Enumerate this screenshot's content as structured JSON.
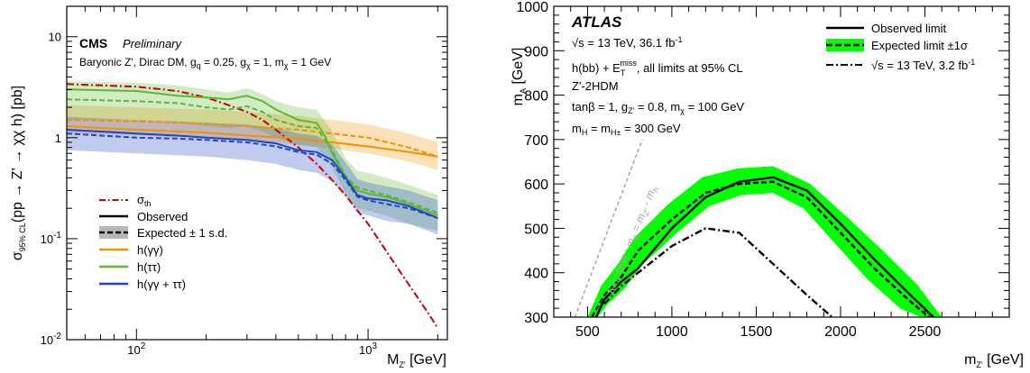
{
  "chart_data": [
    {
      "type": "line",
      "experiment": "CMS",
      "status": "Preliminary",
      "model_text": "Baryonic Z', Dirac DM, g_q = 0.25, g_χ = 1, m_χ = 1 GeV",
      "xlabel": "M_Z' [GeV]",
      "ylabel": "σ_95% CL(pp → Z' → χχ h) [pb]",
      "xscale": "log",
      "yscale": "log",
      "xlim": [
        50,
        2200
      ],
      "ylim": [
        0.01,
        20
      ],
      "x_ticks": [
        {
          "value": 100,
          "label": "10^2"
        },
        {
          "value": 1000,
          "label": "10^3"
        }
      ],
      "y_ticks": [
        {
          "value": 0.01,
          "label": "10^-2"
        },
        {
          "value": 0.1,
          "label": "10^-1"
        },
        {
          "value": 1,
          "label": "1"
        },
        {
          "value": 10,
          "label": "10"
        }
      ],
      "legend_position": "bottom-left",
      "legend": [
        {
          "label": "σ_th",
          "style": "dash-dot",
          "color": "#cc0000"
        },
        {
          "label": "Observed",
          "style": "solid",
          "color": "#000000"
        },
        {
          "label": "Expected ± 1 s.d.",
          "style": "dashed-band",
          "color": "#000000"
        },
        {
          "label": "h(γγ)",
          "style": "solid",
          "color": "#f39200"
        },
        {
          "label": "h(ττ)",
          "style": "solid",
          "color": "#5cb82e"
        },
        {
          "label": "h(γγ + ττ)",
          "style": "solid",
          "color": "#1f45c8"
        }
      ],
      "series": [
        {
          "name": "σ_th",
          "color": "#cc0000",
          "style": "dash-dot",
          "x": [
            50,
            100,
            150,
            200,
            250,
            300,
            350,
            400,
            500,
            600,
            700,
            800,
            900,
            1000,
            1200,
            1500,
            1800,
            2000
          ],
          "y": [
            3.4,
            3.2,
            2.9,
            2.5,
            2.1,
            1.8,
            1.5,
            1.2,
            0.8,
            0.55,
            0.38,
            0.27,
            0.19,
            0.14,
            0.075,
            0.035,
            0.019,
            0.013
          ]
        },
        {
          "name": "h(γγ) observed",
          "color": "#f39200",
          "style": "solid",
          "x": [
            50,
            100,
            200,
            300,
            500,
            700,
            1000,
            1500,
            2000
          ],
          "y": [
            1.3,
            1.2,
            1.12,
            1.05,
            0.98,
            0.9,
            0.82,
            0.72,
            0.65
          ]
        },
        {
          "name": "h(γγ) expected",
          "color": "#f39200",
          "style": "dashed",
          "x": [
            50,
            100,
            200,
            300,
            500,
            700,
            1000,
            1500,
            2000
          ],
          "y": [
            1.5,
            1.45,
            1.38,
            1.3,
            1.2,
            1.1,
            1.0,
            0.8,
            0.65
          ],
          "band_lo": [
            1.1,
            1.05,
            1.0,
            0.95,
            0.85,
            0.78,
            0.7,
            0.58,
            0.48
          ],
          "band_hi": [
            2.1,
            2.0,
            1.9,
            1.8,
            1.65,
            1.5,
            1.35,
            1.1,
            0.9
          ]
        },
        {
          "name": "h(ττ) observed",
          "color": "#5cb82e",
          "style": "solid",
          "x": [
            50,
            100,
            150,
            200,
            250,
            300,
            350,
            400,
            500,
            600,
            650,
            700,
            800,
            900,
            1000,
            1200,
            1500,
            2000
          ],
          "y": [
            3.0,
            2.9,
            2.6,
            2.5,
            2.4,
            2.6,
            2.3,
            1.9,
            1.5,
            1.4,
            1.05,
            0.7,
            0.4,
            0.3,
            0.28,
            0.26,
            0.22,
            0.17
          ]
        },
        {
          "name": "h(ττ) expected",
          "color": "#5cb82e",
          "style": "dashed",
          "x": [
            50,
            100,
            150,
            200,
            250,
            300,
            350,
            400,
            500,
            600,
            700,
            800,
            900,
            1000,
            1200,
            1500,
            2000
          ],
          "y": [
            2.4,
            2.3,
            2.2,
            2.0,
            1.9,
            2.05,
            1.8,
            1.5,
            1.3,
            1.25,
            0.75,
            0.42,
            0.32,
            0.3,
            0.27,
            0.23,
            0.18
          ],
          "band_lo": [
            1.5,
            1.5,
            1.4,
            1.3,
            1.25,
            1.3,
            1.15,
            1.0,
            0.85,
            0.8,
            0.5,
            0.28,
            0.2,
            0.19,
            0.17,
            0.14,
            0.12
          ],
          "band_hi": [
            3.6,
            3.5,
            3.3,
            3.0,
            2.8,
            3.1,
            2.7,
            2.3,
            2.0,
            1.9,
            1.15,
            0.62,
            0.47,
            0.45,
            0.4,
            0.34,
            0.27
          ]
        },
        {
          "name": "h(γγ + ττ) observed",
          "color": "#1f45c8",
          "style": "solid",
          "x": [
            50,
            100,
            150,
            200,
            300,
            400,
            500,
            600,
            700,
            800,
            900,
            1000,
            1200,
            1500,
            2000
          ],
          "y": [
            1.2,
            1.1,
            1.05,
            1.0,
            0.95,
            0.88,
            0.75,
            0.72,
            0.6,
            0.4,
            0.27,
            0.25,
            0.24,
            0.21,
            0.16
          ]
        },
        {
          "name": "h(γγ + ττ) expected",
          "color": "#1f45c8",
          "style": "dashed",
          "x": [
            50,
            100,
            150,
            200,
            300,
            400,
            500,
            600,
            700,
            800,
            900,
            1000,
            1200,
            1500,
            2000
          ],
          "y": [
            1.1,
            1.0,
            0.98,
            0.95,
            0.9,
            0.82,
            0.72,
            0.68,
            0.55,
            0.38,
            0.26,
            0.24,
            0.22,
            0.2,
            0.16
          ],
          "band_lo": [
            0.75,
            0.7,
            0.67,
            0.65,
            0.6,
            0.55,
            0.48,
            0.45,
            0.37,
            0.26,
            0.18,
            0.17,
            0.15,
            0.14,
            0.11
          ],
          "band_hi": [
            1.6,
            1.5,
            1.45,
            1.4,
            1.35,
            1.25,
            1.1,
            1.05,
            0.85,
            0.57,
            0.39,
            0.36,
            0.33,
            0.3,
            0.24
          ]
        }
      ]
    },
    {
      "type": "line",
      "experiment": "ATLAS",
      "energy_lumi": "√s = 13 TeV, 36.1 fb^-1",
      "channel": "h(bb) + E_T^miss, all limits at 95% CL",
      "model": "Z'-2HDM",
      "params1": "tanβ = 1, g_Z' = 0.8, m_χ = 100 GeV",
      "params2": "m_H = m_H± = 300 GeV",
      "xlabel": "m_Z' [GeV]",
      "ylabel": "m_A [GeV]",
      "xlim": [
        300,
        3000
      ],
      "ylim": [
        300,
        1000
      ],
      "x_ticks": [
        500,
        1000,
        1500,
        2000,
        2500
      ],
      "y_ticks": [
        300,
        400,
        500,
        600,
        700,
        800,
        900,
        1000
      ],
      "legend_position": "top-right",
      "legend": [
        {
          "label": "Observed limit",
          "style": "solid",
          "color": "#000000"
        },
        {
          "label": "Expected limit ±1σ",
          "style": "dashed-band",
          "color": "#00ff00"
        },
        {
          "label": "√s = 13 TeV, 3.2 fb^-1",
          "style": "dash-dot",
          "color": "#000000"
        }
      ],
      "kin_limit_label": "Kin. limit : m_A = m_Z' - m_h",
      "kin_limit": {
        "x": [
          425,
          825
        ],
        "y": [
          300,
          700
        ]
      },
      "series": [
        {
          "name": "Observed limit",
          "color": "#000000",
          "style": "solid",
          "x": [
            550,
            600,
            700,
            800,
            1000,
            1200,
            1400,
            1600,
            1800,
            2000,
            2200,
            2400,
            2550
          ],
          "y": [
            300,
            340,
            380,
            410,
            500,
            570,
            605,
            615,
            585,
            510,
            430,
            355,
            300
          ]
        },
        {
          "name": "Expected limit",
          "color": "#000000",
          "style": "dashed",
          "x": [
            525,
            600,
            700,
            800,
            1000,
            1200,
            1400,
            1600,
            1800,
            2000,
            2200,
            2400,
            2525
          ],
          "y": [
            300,
            350,
            390,
            450,
            520,
            580,
            600,
            605,
            570,
            490,
            410,
            340,
            300
          ],
          "band_lo": [
            300,
            330,
            365,
            420,
            490,
            550,
            575,
            580,
            545,
            465,
            385,
            318,
            300
          ],
          "band_hi": [
            300,
            370,
            420,
            480,
            555,
            615,
            635,
            640,
            600,
            525,
            450,
            375,
            300
          ],
          "band_x_lo": [
            560,
            620,
            720,
            830,
            1030,
            1220,
            1410,
            1600,
            1780,
            1970,
            2160,
            2360,
            2480
          ],
          "band_x_hi": [
            500,
            580,
            680,
            780,
            980,
            1180,
            1390,
            1600,
            1820,
            2040,
            2250,
            2450,
            2600
          ]
        },
        {
          "name": "√s = 13 TeV, 3.2 fb^-1",
          "color": "#000000",
          "style": "dash-dot",
          "x": [
            600,
            700,
            800,
            1000,
            1200,
            1400,
            1600,
            1800,
            1950
          ],
          "y": [
            330,
            370,
            400,
            460,
            500,
            490,
            420,
            350,
            300
          ]
        }
      ]
    }
  ]
}
